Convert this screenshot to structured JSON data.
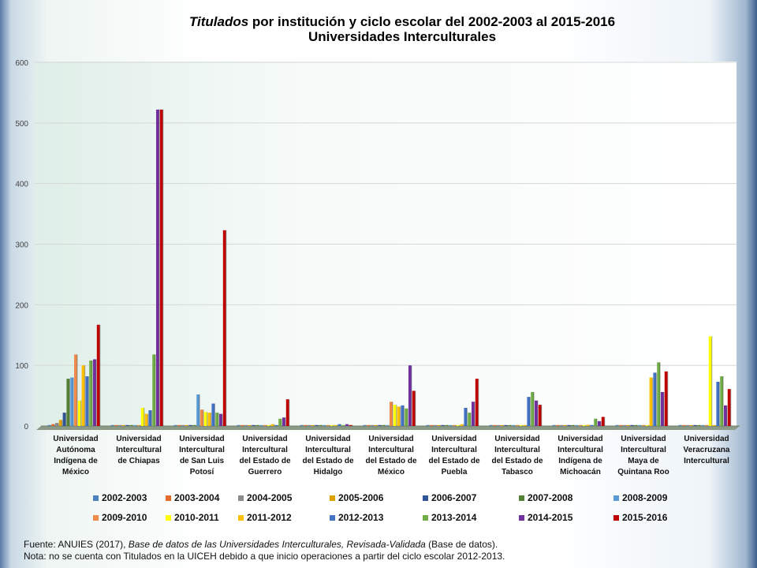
{
  "chart_data": {
    "type": "bar",
    "title_italic": "Titulados",
    "title_rest": " por institución y ciclo escolar del  2002-2003 al  2015-2016",
    "subtitle": "Universidades Interculturales",
    "ylim": [
      0,
      600
    ],
    "yticks": [
      0,
      100,
      200,
      300,
      400,
      500,
      600
    ],
    "grid": true,
    "legend_position": "bottom",
    "categories": [
      [
        "Universidad",
        "Autónoma",
        "Indígena de",
        "México"
      ],
      [
        "Universidad",
        "Intercultural",
        "de Chiapas"
      ],
      [
        "Universidad",
        "Intercultural",
        "de San Luis",
        "Potosí"
      ],
      [
        "Universidad",
        "Intercultural",
        "del Estado de",
        "Guerrero"
      ],
      [
        "Universidad",
        "Intercultural",
        "del Estado de",
        "Hidalgo"
      ],
      [
        "Universidad",
        "Intercultural",
        "del Estado de",
        "México"
      ],
      [
        "Universidad",
        "Intercultural",
        "del Estado de",
        "Puebla"
      ],
      [
        "Universidad",
        "Intercultural",
        "del Estado de",
        "Tabasco"
      ],
      [
        "Universidad",
        "Intercultural",
        "Indígena de",
        "Michoacán"
      ],
      [
        "Universidad",
        "Intercultural",
        "Maya de",
        "Quintana Roo"
      ],
      [
        "Universidad",
        "Veracruzana",
        "Intercultural"
      ]
    ],
    "series": [
      {
        "name": "2002-2003",
        "color": "#4f81bd",
        "values": [
          0,
          0,
          0,
          0,
          0,
          0,
          0,
          0,
          0,
          0,
          0
        ]
      },
      {
        "name": "2003-2004",
        "color": "#e46c2a",
        "values": [
          3,
          0,
          0,
          0,
          0,
          0,
          0,
          0,
          0,
          0,
          0
        ]
      },
      {
        "name": "2004-2005",
        "color": "#8c8c8c",
        "values": [
          5,
          0,
          0,
          0,
          0,
          0,
          0,
          0,
          0,
          0,
          0
        ]
      },
      {
        "name": "2005-2006",
        "color": "#e0a100",
        "values": [
          10,
          0,
          0,
          0,
          0,
          0,
          0,
          0,
          0,
          0,
          0
        ]
      },
      {
        "name": "2006-2007",
        "color": "#2f5597",
        "values": [
          22,
          0,
          0,
          0,
          0,
          0,
          0,
          0,
          0,
          0,
          0
        ]
      },
      {
        "name": "2007-2008",
        "color": "#548235",
        "values": [
          78,
          0,
          0,
          0,
          0,
          0,
          0,
          0,
          0,
          0,
          0
        ]
      },
      {
        "name": "2008-2009",
        "color": "#5b9bd5",
        "values": [
          80,
          0,
          52,
          0,
          0,
          0,
          0,
          0,
          0,
          0,
          0
        ]
      },
      {
        "name": "2009-2010",
        "color": "#f08a4b",
        "values": [
          118,
          0,
          27,
          0,
          0,
          40,
          0,
          0,
          0,
          0,
          0
        ]
      },
      {
        "name": "2010-2011",
        "color": "#ffff00",
        "values": [
          42,
          30,
          23,
          0,
          0,
          35,
          0,
          0,
          0,
          0,
          148
        ]
      },
      {
        "name": "2011-2012",
        "color": "#ffc000",
        "values": [
          100,
          20,
          22,
          3,
          0,
          32,
          3,
          0,
          2,
          80,
          0
        ]
      },
      {
        "name": "2012-2013",
        "color": "#4472c4",
        "values": [
          82,
          26,
          37,
          0,
          3,
          34,
          30,
          48,
          0,
          88,
          73
        ]
      },
      {
        "name": "2013-2014",
        "color": "#70ad47",
        "values": [
          108,
          118,
          22,
          12,
          0,
          29,
          22,
          56,
          12,
          105,
          82
        ]
      },
      {
        "name": "2014-2015",
        "color": "#7030a0",
        "values": [
          110,
          522,
          20,
          14,
          3,
          100,
          40,
          42,
          8,
          56,
          34
        ]
      },
      {
        "name": "2015-2016",
        "color": "#c00000",
        "values": [
          167,
          522,
          323,
          44,
          0,
          58,
          78,
          35,
          15,
          90,
          61
        ]
      }
    ]
  },
  "footer": {
    "source_prefix": "Fuente: ANUIES (2017),  ",
    "source_title": "Base de datos de las Universidades Interculturales, Revisada-Validada",
    "source_suffix": "  (Base de datos).",
    "note": "Nota: no se cuenta con Titulados en la UICEH  debido a que inicio operaciones a partir del ciclo escolar 2012-2013."
  }
}
